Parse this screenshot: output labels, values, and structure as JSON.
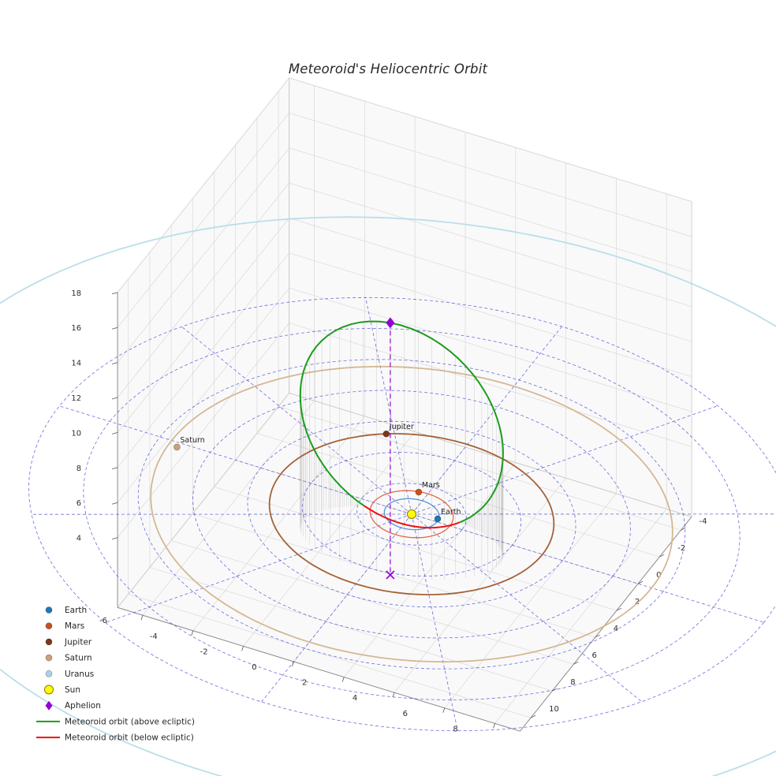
{
  "chart_data": {
    "type": "line",
    "subtype": "3d-heliocentric-orbit-plot",
    "title": "Meteoroid's Heliocentric Orbit",
    "axes": {
      "x_ticks": [
        -6,
        -4,
        -2,
        0,
        2,
        4,
        6,
        8
      ],
      "y_ticks": [
        -4,
        -2,
        0,
        2,
        4,
        6,
        8,
        10
      ],
      "z_ticks": [
        4,
        6,
        8,
        10,
        12,
        14,
        16,
        18
      ],
      "x_range": [
        -7,
        9
      ],
      "y_range": [
        -5,
        11
      ],
      "z_range": [
        0,
        18
      ],
      "grid": true
    },
    "ecliptic_plane_grid": {
      "type": "polar",
      "style": "dashed",
      "color": "#3d3dd1",
      "radii_au": [
        2,
        4,
        6,
        8,
        10,
        12,
        14
      ],
      "spoke_step_deg": 30,
      "spoke_length_au": 14
    },
    "planet_orbits": [
      {
        "name": "Earth",
        "radius_au": 1.0,
        "color": "#4f8fce",
        "line_width": 1.3
      },
      {
        "name": "Mars",
        "radius_au": 1.52,
        "color": "#e2603a",
        "line_width": 1.3
      },
      {
        "name": "Jupiter",
        "radius_au": 5.2,
        "color": "#a15a2a",
        "line_width": 1.8
      },
      {
        "name": "Saturn",
        "radius_au": 9.54,
        "color": "#d2b48c",
        "line_width": 1.8
      },
      {
        "name": "Uranus",
        "radius_au": 19.2,
        "color": "#b7dce8",
        "line_width": 1.8
      }
    ],
    "planets": [
      {
        "name": "Earth",
        "x": 0.95,
        "y": -0.2,
        "color": "#1f77b4"
      },
      {
        "name": "Mars",
        "x": -0.34,
        "y": -1.45,
        "color": "#c8501e"
      },
      {
        "name": "Jupiter",
        "x": -2.86,
        "y": -4.34,
        "color": "#7a371c"
      },
      {
        "name": "Saturn",
        "x": -9.2,
        "y": 0.3,
        "color": "#c9a179"
      }
    ],
    "sun": {
      "label": "Sun",
      "x": 0,
      "y": 0,
      "color": "#ffff00",
      "edge_color": "#8a7a00"
    },
    "meteoroid_orbit": {
      "aphelion": {
        "x": 0.87,
        "y": 4.03,
        "z": 14.4
      },
      "perihelion_distance_au": 0.94,
      "aphelion_distance_au": 15.0,
      "above_color": "#1c9c1c",
      "below_color": "#ee1111",
      "marker_color": "#9400d3"
    },
    "legend": [
      {
        "label": "Earth",
        "marker": "dot",
        "color": "#1f77b4"
      },
      {
        "label": "Mars",
        "marker": "dot",
        "color": "#c8501e"
      },
      {
        "label": "Jupiter",
        "marker": "dot",
        "color": "#7a371c"
      },
      {
        "label": "Saturn",
        "marker": "dot",
        "color": "#c9a179"
      },
      {
        "label": "Uranus",
        "marker": "dot",
        "color": "#a8d4e6"
      },
      {
        "label": "Sun",
        "marker": "sun",
        "color": "#ffff00",
        "edge_color": "#8a7a00"
      },
      {
        "label": "Aphelion",
        "marker": "diamond",
        "color": "#9400d3"
      },
      {
        "label": "Meteoroid orbit (above ecliptic)",
        "marker": "line",
        "color": "#1c9c1c"
      },
      {
        "label": "Meteoroid orbit (below ecliptic)",
        "marker": "line",
        "color": "#ee1111"
      }
    ]
  }
}
